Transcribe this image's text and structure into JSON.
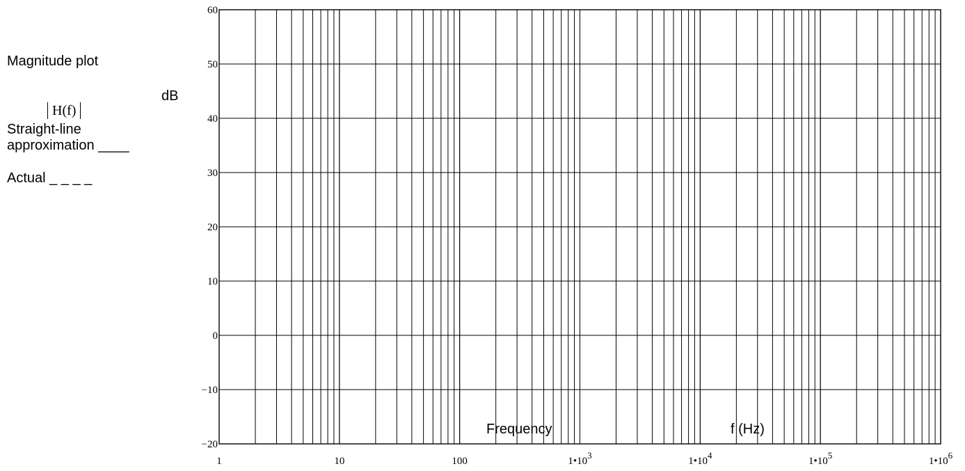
{
  "legend": {
    "title": "Magnitude plot",
    "quantity": "H(f)",
    "unit": "dB",
    "straight_line_1": "Straight-line",
    "straight_line_2": "approximation ____",
    "actual": "Actual _ _ _ _"
  },
  "chart_data": {
    "type": "line",
    "x_scale": "log",
    "xlim": [
      1,
      1000000
    ],
    "ylim": [
      -20,
      60
    ],
    "grid": true,
    "x_ticks": [
      {
        "label": "1",
        "exp": ""
      },
      {
        "label": "10",
        "exp": ""
      },
      {
        "label": "100",
        "exp": ""
      },
      {
        "label": "1•10",
        "exp": "3"
      },
      {
        "label": "1•10",
        "exp": "4"
      },
      {
        "label": "1•10",
        "exp": "5"
      },
      {
        "label": "1•10",
        "exp": "6"
      }
    ],
    "y_ticks": [
      "60",
      "50",
      "40",
      "30",
      "20",
      "10",
      "0",
      "−10",
      "−20"
    ],
    "y_values": [
      60,
      50,
      40,
      30,
      20,
      10,
      0,
      -10,
      -20
    ],
    "annotations": [
      "Frequency",
      "f (Hz)"
    ],
    "series": []
  }
}
